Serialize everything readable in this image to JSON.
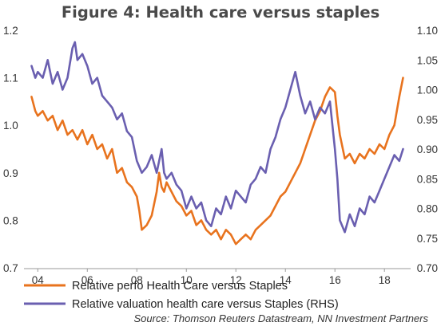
{
  "chart_data": {
    "type": "line",
    "title": "Figure 4: Health care versus staples",
    "x_tick_labels": [
      "04",
      "06",
      "08",
      "10",
      "12",
      "14",
      "16",
      "18"
    ],
    "x_tick_years": [
      2004,
      2006,
      2008,
      2010,
      2012,
      2014,
      2016,
      2018
    ],
    "xlim": [
      2003.7,
      2018.8
    ],
    "left_axis": {
      "ylim": [
        0.7,
        1.2
      ],
      "ticks": [
        0.7,
        0.8,
        0.9,
        1.0,
        1.1,
        1.2
      ],
      "tick_labels": [
        "0.7",
        "0.8",
        "0.9",
        "1.0",
        "1.1",
        "1.2"
      ]
    },
    "right_axis": {
      "ylim": [
        0.7,
        1.1
      ],
      "ticks": [
        0.7,
        0.75,
        0.8,
        0.85,
        0.9,
        0.95,
        1.0,
        1.05,
        1.1
      ],
      "tick_labels": [
        "0.70",
        "0.75",
        "0.80",
        "0.85",
        "0.90",
        "0.95",
        "1.00",
        "1.05",
        "1.10"
      ]
    },
    "grid": false,
    "legend_position": "bottom",
    "series": [
      {
        "name": "Relative perfo Health Care versus Staples",
        "color": "#e8731e",
        "axis": "left",
        "x": [
          2003.75,
          2003.9,
          2004.0,
          2004.2,
          2004.4,
          2004.6,
          2004.8,
          2005.0,
          2005.2,
          2005.4,
          2005.6,
          2005.8,
          2006.0,
          2006.2,
          2006.4,
          2006.6,
          2006.8,
          2007.0,
          2007.2,
          2007.4,
          2007.6,
          2007.8,
          2008.0,
          2008.1,
          2008.2,
          2008.4,
          2008.6,
          2008.8,
          2008.9,
          2009.0,
          2009.1,
          2009.2,
          2009.4,
          2009.6,
          2009.8,
          2010.0,
          2010.2,
          2010.4,
          2010.6,
          2010.8,
          2011.0,
          2011.2,
          2011.4,
          2011.6,
          2011.8,
          2012.0,
          2012.2,
          2012.4,
          2012.6,
          2012.8,
          2013.0,
          2013.2,
          2013.4,
          2013.6,
          2013.8,
          2014.0,
          2014.2,
          2014.4,
          2014.6,
          2014.8,
          2015.0,
          2015.2,
          2015.4,
          2015.6,
          2015.8,
          2016.0,
          2016.1,
          2016.2,
          2016.4,
          2016.6,
          2016.8,
          2017.0,
          2017.2,
          2017.4,
          2017.6,
          2017.8,
          2018.0,
          2018.2,
          2018.4,
          2018.6,
          2018.75
        ],
        "values": [
          1.06,
          1.03,
          1.02,
          1.03,
          1.01,
          1.02,
          0.99,
          1.01,
          0.98,
          0.99,
          0.97,
          0.99,
          0.96,
          0.98,
          0.95,
          0.96,
          0.93,
          0.95,
          0.9,
          0.91,
          0.88,
          0.87,
          0.85,
          0.82,
          0.78,
          0.79,
          0.81,
          0.86,
          0.9,
          0.87,
          0.86,
          0.88,
          0.86,
          0.84,
          0.83,
          0.81,
          0.82,
          0.79,
          0.8,
          0.78,
          0.77,
          0.78,
          0.76,
          0.78,
          0.77,
          0.75,
          0.76,
          0.77,
          0.76,
          0.78,
          0.79,
          0.8,
          0.81,
          0.83,
          0.85,
          0.86,
          0.88,
          0.9,
          0.92,
          0.95,
          0.98,
          1.01,
          1.03,
          1.06,
          1.08,
          1.07,
          1.02,
          0.98,
          0.93,
          0.94,
          0.92,
          0.94,
          0.93,
          0.95,
          0.94,
          0.96,
          0.95,
          0.98,
          1.0,
          1.06,
          1.1
        ]
      },
      {
        "name": "Relative valuation health care versus Staples (RHS)",
        "color": "#6a5fb0",
        "axis": "right",
        "x": [
          2003.75,
          2003.9,
          2004.0,
          2004.2,
          2004.4,
          2004.6,
          2004.8,
          2005.0,
          2005.2,
          2005.4,
          2005.5,
          2005.6,
          2005.8,
          2006.0,
          2006.2,
          2006.4,
          2006.6,
          2006.8,
          2007.0,
          2007.2,
          2007.4,
          2007.6,
          2007.8,
          2008.0,
          2008.2,
          2008.4,
          2008.6,
          2008.8,
          2008.9,
          2009.0,
          2009.1,
          2009.2,
          2009.4,
          2009.6,
          2009.8,
          2010.0,
          2010.2,
          2010.4,
          2010.6,
          2010.8,
          2011.0,
          2011.2,
          2011.4,
          2011.6,
          2011.8,
          2012.0,
          2012.2,
          2012.4,
          2012.6,
          2012.8,
          2013.0,
          2013.2,
          2013.4,
          2013.6,
          2013.8,
          2014.0,
          2014.2,
          2014.4,
          2014.6,
          2014.8,
          2015.0,
          2015.2,
          2015.4,
          2015.6,
          2015.8,
          2016.0,
          2016.1,
          2016.2,
          2016.4,
          2016.6,
          2016.8,
          2017.0,
          2017.2,
          2017.4,
          2017.6,
          2017.8,
          2018.0,
          2018.2,
          2018.4,
          2018.6,
          2018.75
        ],
        "values": [
          1.04,
          1.02,
          1.03,
          1.02,
          1.05,
          1.01,
          1.03,
          1.0,
          1.02,
          1.07,
          1.08,
          1.05,
          1.06,
          1.04,
          1.01,
          1.02,
          0.99,
          0.98,
          0.97,
          0.95,
          0.96,
          0.93,
          0.92,
          0.88,
          0.86,
          0.87,
          0.89,
          0.86,
          0.88,
          0.9,
          0.86,
          0.85,
          0.86,
          0.84,
          0.83,
          0.8,
          0.82,
          0.8,
          0.81,
          0.78,
          0.77,
          0.8,
          0.79,
          0.82,
          0.8,
          0.83,
          0.82,
          0.81,
          0.84,
          0.85,
          0.87,
          0.86,
          0.9,
          0.92,
          0.95,
          0.97,
          1.0,
          1.03,
          0.99,
          0.96,
          0.98,
          0.95,
          0.97,
          0.96,
          0.98,
          0.9,
          0.85,
          0.78,
          0.76,
          0.79,
          0.77,
          0.8,
          0.79,
          0.82,
          0.81,
          0.83,
          0.85,
          0.87,
          0.89,
          0.88,
          0.9
        ]
      }
    ],
    "source": "Source: Thomson Reuters Datastream, NN Investment Partners"
  }
}
